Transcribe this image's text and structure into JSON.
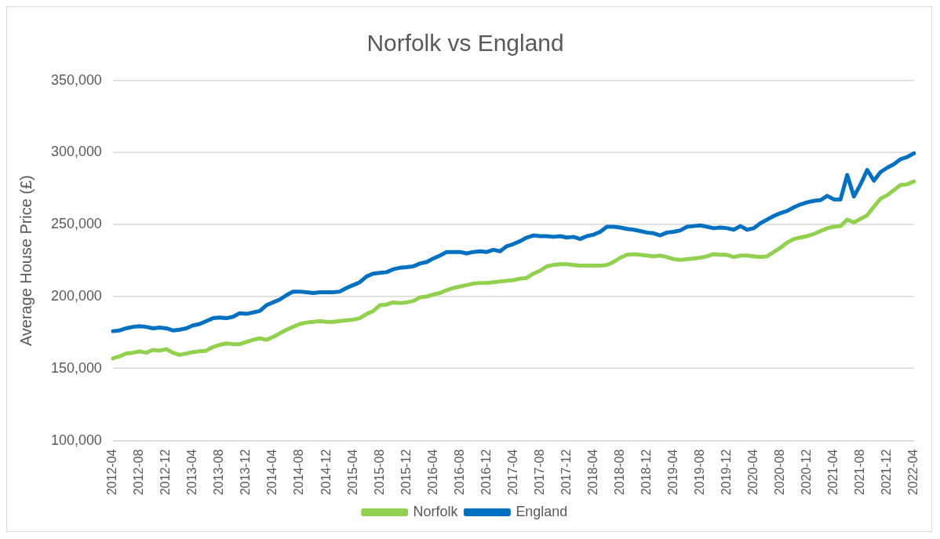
{
  "chart_data": {
    "type": "line",
    "title": "Norfolk vs England",
    "ylabel": "Average House Price (£)",
    "categories": [
      "2012-04",
      null,
      null,
      null,
      "2012-08",
      null,
      null,
      null,
      "2012-12",
      null,
      null,
      null,
      "2013-04",
      null,
      null,
      null,
      "2013-08",
      null,
      null,
      null,
      "2013-12",
      null,
      null,
      null,
      "2014-04",
      null,
      null,
      null,
      "2014-08",
      null,
      null,
      null,
      "2014-12",
      null,
      null,
      null,
      "2015-04",
      null,
      null,
      null,
      "2015-08",
      null,
      null,
      null,
      "2015-12",
      null,
      null,
      null,
      "2016-04",
      null,
      null,
      null,
      "2016-08",
      null,
      null,
      null,
      "2016-12",
      null,
      null,
      null,
      "2017-04",
      null,
      null,
      null,
      "2017-08",
      null,
      null,
      null,
      "2017-12",
      null,
      null,
      null,
      "2018-04",
      null,
      null,
      null,
      "2018-08",
      null,
      null,
      null,
      "2018-12",
      null,
      null,
      null,
      "2019-04",
      null,
      null,
      null,
      "2019-08",
      null,
      null,
      null,
      "2019-12",
      null,
      null,
      null,
      "2020-04",
      null,
      null,
      null,
      "2020-08",
      null,
      null,
      null,
      "2020-12",
      null,
      null,
      null,
      "2021-04",
      null,
      null,
      null,
      "2021-08",
      null,
      null,
      null,
      "2021-12",
      null,
      null,
      null,
      "2022-04"
    ],
    "series": [
      {
        "name": "Norfolk",
        "color": "#92d050",
        "values": [
          157000,
          158500,
          160500,
          161000,
          162000,
          161000,
          163000,
          162500,
          163500,
          161000,
          159500,
          160500,
          161500,
          162000,
          162500,
          165000,
          166500,
          167500,
          167000,
          167000,
          168500,
          170000,
          171000,
          170000,
          172000,
          174500,
          177000,
          179000,
          181000,
          182000,
          182500,
          183000,
          182500,
          182500,
          183000,
          183500,
          184000,
          185000,
          188000,
          190000,
          194000,
          194500,
          196000,
          195500,
          196000,
          197000,
          199500,
          200000,
          201500,
          202500,
          204500,
          206000,
          207000,
          208000,
          209000,
          209500,
          209500,
          210000,
          210500,
          211000,
          211500,
          212500,
          213000,
          216000,
          218000,
          221000,
          222000,
          222500,
          222500,
          222000,
          221500,
          221500,
          221500,
          221500,
          222000,
          224000,
          227000,
          229000,
          229500,
          229000,
          228500,
          228000,
          228500,
          227500,
          226000,
          225500,
          226000,
          226500,
          227000,
          228000,
          229500,
          229000,
          229000,
          227500,
          228500,
          228500,
          228000,
          227500,
          228000,
          231000,
          234000,
          237500,
          240000,
          241000,
          242000,
          243500,
          245500,
          247500,
          248500,
          249000,
          253500,
          251500,
          254000,
          256500,
          262500,
          268000,
          270500,
          274000,
          277500,
          278000,
          280000
        ]
      },
      {
        "name": "England",
        "color": "#0070c0",
        "values": [
          176000,
          176500,
          178000,
          179000,
          179500,
          179000,
          178000,
          178500,
          178000,
          176500,
          177000,
          178000,
          180000,
          181000,
          183000,
          185000,
          185500,
          185000,
          186000,
          188500,
          188000,
          189000,
          190000,
          194000,
          196000,
          198000,
          201000,
          203500,
          203500,
          203000,
          202500,
          203000,
          203000,
          203000,
          203500,
          206000,
          208000,
          210000,
          214000,
          216000,
          216500,
          217000,
          219000,
          220000,
          220500,
          221000,
          223000,
          224000,
          226500,
          228500,
          231000,
          231000,
          231000,
          230000,
          231000,
          231500,
          231000,
          232500,
          231500,
          235000,
          236500,
          238500,
          241000,
          242500,
          242000,
          242000,
          241500,
          242000,
          241000,
          241500,
          240000,
          242000,
          243000,
          245000,
          248500,
          248500,
          248000,
          247000,
          246500,
          245500,
          244500,
          244000,
          242500,
          244500,
          245000,
          246000,
          248500,
          249000,
          249500,
          248500,
          247500,
          248000,
          247500,
          246500,
          249000,
          246500,
          247500,
          251000,
          253500,
          256000,
          258000,
          259500,
          262000,
          264000,
          265500,
          266500,
          267000,
          270000,
          267500,
          267500,
          284500,
          269500,
          278000,
          288000,
          280500,
          286500,
          289500,
          292000,
          295500,
          297000,
          299500
        ]
      }
    ],
    "ylim": [
      100000,
      350000
    ],
    "yticks": [
      {
        "value": 100000,
        "label": "100,000"
      },
      {
        "value": 150000,
        "label": "150,000"
      },
      {
        "value": 200000,
        "label": "200,000"
      },
      {
        "value": 250000,
        "label": "250,000"
      },
      {
        "value": 300000,
        "label": "300,000"
      },
      {
        "value": 350000,
        "label": "350,000"
      }
    ],
    "grid": "y",
    "legend": "bottom",
    "marker": "none",
    "line_style": "solid"
  }
}
